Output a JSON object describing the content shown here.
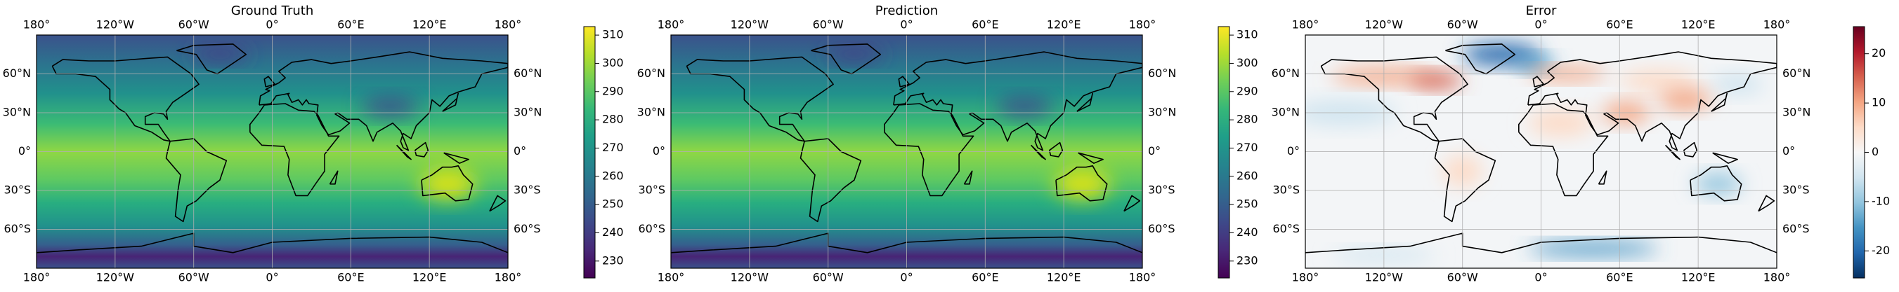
{
  "map": {
    "xlim": [
      -180,
      180
    ],
    "ylim": [
      -90,
      90
    ],
    "xticks": [
      {
        "value": -180,
        "label": "180°"
      },
      {
        "value": -120,
        "label": "120°W"
      },
      {
        "value": -60,
        "label": "60°W"
      },
      {
        "value": 0,
        "label": "0°"
      },
      {
        "value": 60,
        "label": "60°E"
      },
      {
        "value": 120,
        "label": "120°E"
      },
      {
        "value": 180,
        "label": "180°"
      }
    ],
    "yticks": [
      {
        "value": 60,
        "label": "60°N"
      },
      {
        "value": 30,
        "label": "30°N"
      },
      {
        "value": 0,
        "label": "0°"
      },
      {
        "value": -30,
        "label": "30°S"
      },
      {
        "value": -60,
        "label": "60°S"
      }
    ],
    "grid": true
  },
  "panels": [
    {
      "title": "Ground Truth",
      "colorbar": {
        "colormap": "viridis",
        "lim": [
          224,
          313
        ],
        "ticks": [
          230,
          240,
          250,
          260,
          270,
          280,
          290,
          300,
          310
        ]
      }
    },
    {
      "title": "Prediction",
      "colorbar": {
        "colormap": "viridis",
        "lim": [
          224,
          313
        ],
        "ticks": [
          230,
          240,
          250,
          260,
          270,
          280,
          290,
          300,
          310
        ]
      }
    },
    {
      "title": "Error",
      "colorbar": {
        "colormap": "RdBu_r",
        "lim": [
          -25.5,
          25.5
        ],
        "ticks": [
          -20,
          -10,
          0,
          10,
          20
        ]
      }
    }
  ]
}
